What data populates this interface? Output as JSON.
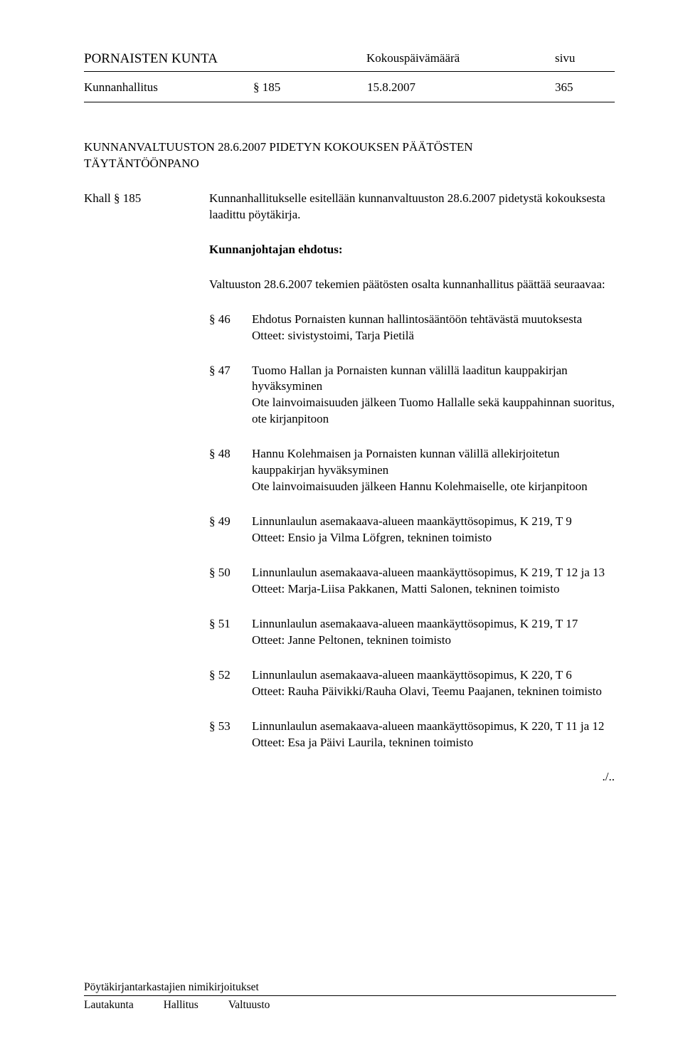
{
  "header": {
    "org": "PORNAISTEN KUNTA",
    "kokous_label": "Kokouspäivämäärä",
    "sivu_label": "sivu"
  },
  "subheader": {
    "body": "Kunnanhallitus",
    "section": "§ 185",
    "date": "15.8.2007",
    "page": "365"
  },
  "title": {
    "line1": "KUNNANVALTUUSTON 28.6.2007 PIDETYN KOKOUKSEN PÄÄTÖSTEN",
    "line2": "TÄYTÄNTÖÖNPANO"
  },
  "intro": {
    "label": "Khall § 185",
    "text": "Kunnanhallitukselle esitellään kunnanvaltuuston 28.6.2007 pidetystä kokouksesta laadittu pöytäkirja."
  },
  "ehdotus_heading": "Kunnanjohtajan ehdotus:",
  "valtuuston_line": "Valtuuston 28.6.2007 tekemien päätösten osalta kunnanhallitus päättää seuraavaa:",
  "items": [
    {
      "num": "§ 46",
      "text": "Ehdotus Pornaisten kunnan hallintosääntöön tehtävästä muutoksesta\nOtteet: sivistystoimi, Tarja Pietilä"
    },
    {
      "num": "§ 47",
      "text": "Tuomo Hallan ja Pornaisten kunnan välillä laaditun kauppakirjan hyväksyminen\nOte lainvoimaisuuden jälkeen Tuomo Hallalle sekä kauppahinnan suoritus, ote kirjanpitoon"
    },
    {
      "num": "§ 48",
      "text": "Hannu Kolehmaisen ja Pornaisten kunnan välillä allekirjoitetun kauppakirjan hyväksyminen\nOte lainvoimaisuuden jälkeen Hannu Kolehmaiselle, ote kirjanpitoon"
    },
    {
      "num": "§ 49",
      "text": "Linnunlaulun asemakaava-alueen maankäyttösopimus, K 219, T 9\nOtteet: Ensio ja Vilma Löfgren, tekninen toimisto"
    },
    {
      "num": "§ 50",
      "text": "Linnunlaulun asemakaava-alueen maankäyttösopimus, K 219, T 12 ja 13\nOtteet: Marja-Liisa Pakkanen, Matti Salonen, tekninen toimisto"
    },
    {
      "num": "§ 51",
      "text": "Linnunlaulun asemakaava-alueen maankäyttösopimus, K 219, T 17\nOtteet: Janne Peltonen, tekninen toimisto"
    },
    {
      "num": "§ 52",
      "text": "Linnunlaulun asemakaava-alueen maankäyttösopimus, K 220, T 6\nOtteet: Rauha Päivikki/Rauha Olavi, Teemu Paajanen, tekninen toimisto"
    },
    {
      "num": "§ 53",
      "text": "Linnunlaulun asemakaava-alueen maankäyttösopimus, K 220, T 11 ja 12\nOtteet: Esa ja Päivi Laurila, tekninen toimisto"
    }
  ],
  "continuation": "./..",
  "footer": {
    "line1": "Pöytäkirjantarkastajien nimikirjoitukset",
    "c1": "Lautakunta",
    "c2": "Hallitus",
    "c3": "Valtuusto"
  }
}
